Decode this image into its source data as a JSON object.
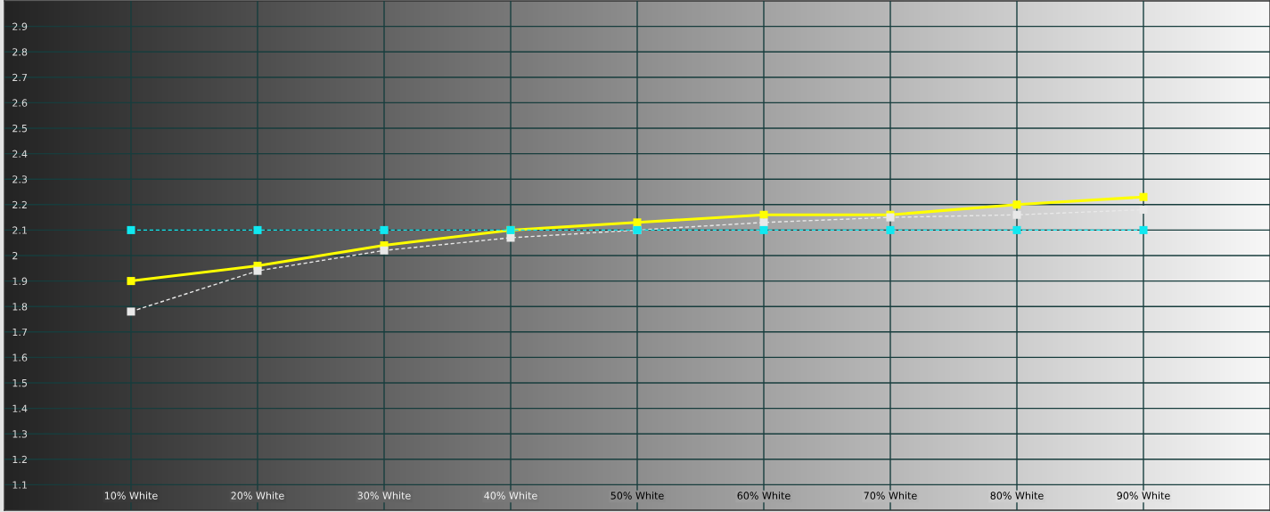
{
  "chart_data": {
    "type": "line",
    "marker": "square",
    "grid": true,
    "x": [
      10,
      20,
      30,
      40,
      50,
      60,
      70,
      80,
      90
    ],
    "xlim": [
      0,
      100
    ],
    "xticks": [
      {
        "value": 10,
        "label": "10% White"
      },
      {
        "value": 20,
        "label": "20% White"
      },
      {
        "value": 30,
        "label": "30% White"
      },
      {
        "value": 40,
        "label": "40% White"
      },
      {
        "value": 50,
        "label": "50% White"
      },
      {
        "value": 60,
        "label": "60% White"
      },
      {
        "value": 70,
        "label": "70% White"
      },
      {
        "value": 80,
        "label": "80% White"
      },
      {
        "value": 90,
        "label": "90% White"
      }
    ],
    "ylim": [
      1,
      3
    ],
    "yticks": [
      1.1,
      1.2,
      1.3,
      1.4,
      1.5,
      1.6,
      1.7,
      1.8,
      1.9,
      2,
      2.1,
      2.2,
      2.3,
      2.4,
      2.5,
      2.6,
      2.7,
      2.8,
      2.9
    ],
    "series": [
      {
        "color": "#ffff00",
        "line_style": "solid",
        "values": [
          1.9,
          1.96,
          2.04,
          2.1,
          2.13,
          2.16,
          2.16,
          2.2,
          2.23
        ]
      },
      {
        "color": "#e8e8e8",
        "line_style": "dashed",
        "values": [
          1.78,
          1.94,
          2.02,
          2.07,
          2.1,
          2.13,
          2.15,
          2.16,
          2.18
        ]
      },
      {
        "color": "#10e8f0",
        "line_style": "dashed",
        "values": [
          2.1,
          2.1,
          2.1,
          2.1,
          2.1,
          2.1,
          2.1,
          2.1,
          2.1
        ]
      }
    ]
  }
}
